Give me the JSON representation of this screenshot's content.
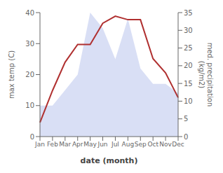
{
  "chart_data": {
    "type": "line",
    "xlabel": "date (month)",
    "ylabel": "max temp (C)",
    "y2label": "med. precipitation\n(kg/m2)",
    "categories": [
      "Jan",
      "Feb",
      "Mar",
      "Apr",
      "May",
      "Jun",
      "Jul",
      "Aug",
      "Sep",
      "Oct",
      "Nov",
      "Dec"
    ],
    "series": [
      {
        "type": "area",
        "color": "#aab8e8",
        "values": [
          10,
          10,
          15,
          20,
          40,
          35,
          25,
          38,
          22,
          17,
          17,
          14
        ]
      },
      {
        "type": "line",
        "axis": "y2",
        "color": "#b03030",
        "values": [
          4,
          13,
          21,
          26,
          26,
          32,
          34,
          33,
          33,
          22,
          18,
          11
        ]
      }
    ],
    "ylim": [
      0,
      40
    ],
    "yticks": [
      0,
      10,
      20,
      30,
      40
    ],
    "y2lim": [
      0,
      35
    ],
    "y2ticks": [
      0,
      5,
      10,
      15,
      20,
      25,
      30,
      35
    ]
  }
}
